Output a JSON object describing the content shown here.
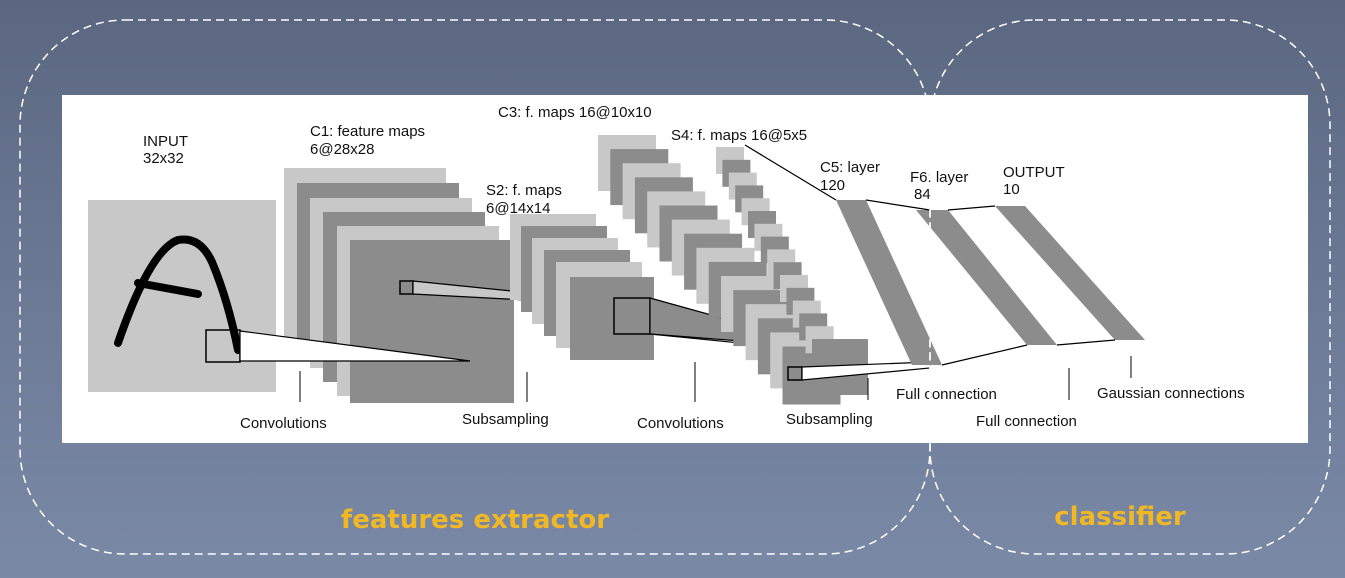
{
  "regions": {
    "features_label": "features extractor",
    "classifier_label": "classifier"
  },
  "layers": {
    "input": {
      "name": "INPUT",
      "size": "32x32"
    },
    "c1": {
      "name": "C1: feature maps",
      "size": "6@28x28"
    },
    "s2": {
      "name": "S2: f. maps",
      "size": "6@14x14"
    },
    "c3": {
      "name": "C3: f. maps 16@10x10"
    },
    "s4": {
      "name": "S4: f. maps 16@5x5"
    },
    "c5": {
      "name": "C5: layer",
      "size": "120"
    },
    "f6": {
      "name": "F6: layer",
      "size": "84"
    },
    "output": {
      "name": "OUTPUT",
      "size": "10"
    }
  },
  "operations": {
    "conv1": "Convolutions",
    "sub1": "Subsampling",
    "conv2": "Convolutions",
    "sub2": "Subsampling",
    "full1": "Full connection",
    "full2": "Full connection",
    "gauss": "Gaussian connections"
  },
  "colors": {
    "map_light": "#c8c8c8",
    "map_dark": "#8c8c8c",
    "accent": "#f2b824",
    "panel": "#ffffff"
  }
}
